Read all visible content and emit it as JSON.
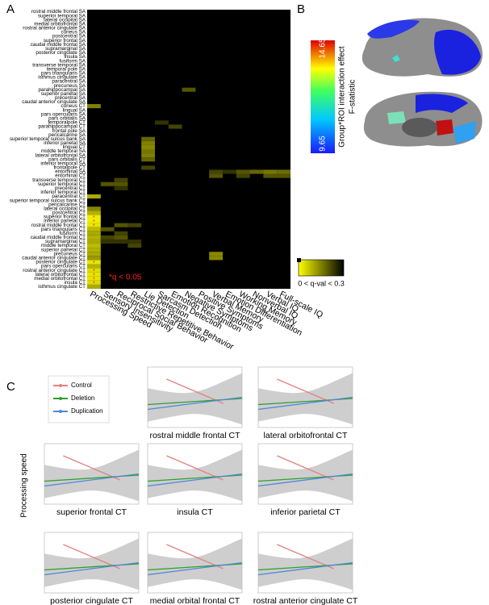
{
  "panel_a": {
    "label": "A",
    "rows": [
      "rostral middle frontal SA",
      "superior temporal SA",
      "lateral occipital SA",
      "medial orbitofrontal SA",
      "rostral anterior cingulate SA",
      "cuneus SA",
      "postcentral SA",
      "superior frontal SA",
      "caudal middle frontal SA",
      "supramarginal SA",
      "posterior cingulate SA",
      "insula SA",
      "fusiform SA",
      "transverse temporal SA",
      "temporal pole SA",
      "pars triangularis SA",
      "isthmus cingulate SA",
      "paracentral SA",
      "precuneus SA",
      "parahippocampal SA",
      "superior parietal SA",
      "precentral SA",
      "caudal anterior cingulate SA",
      "cuneus CT",
      "lingual SA",
      "pars opercularis SA",
      "pars orbitalis SA",
      "temporalpole CT",
      "parahippocampal CT",
      "frontal pole SA",
      "pericalcarine SA",
      "superior temporal sulcus bank SA",
      "inferior parietal SA",
      "lingual CT",
      "middle temporal SA",
      "lateral orbitofrontal SA",
      "pars orbitalis CT",
      "inferior temporal SA",
      "frontalpole CT",
      "entorhinal SA",
      "entorhinal CT",
      "transverse temporal CT",
      "superior temporal CT",
      "precentral CT",
      "inferior temporal CT",
      "paracentral CT",
      "superior temporal sulcus bank CT",
      "pericalcarine CT",
      "lateral occipital CT",
      "postcentral CT",
      "superior frontal CT",
      "inferior parietal CT",
      "rostral middle frontal CT",
      "pars triangularis CT",
      "fusiform CT",
      "caudal middle frontal CT",
      "supramarginal CT",
      "middle temporal CT",
      "superior parietal CT",
      "precuneus CT",
      "caudal anterior cingulate CT",
      "posterior cingulate CT",
      "pars opercularis CT",
      "rostral anterior cingulate CT",
      "lateral orbitofrontal CT",
      "medial orbitofrontal CT",
      "insula CT",
      "isthmus cingulate CT"
    ],
    "columns": [
      "Processing Speed",
      "Sensory Insensitivity",
      "Reciprocal Social Behavior",
      "Restrictive Repetitive Behavior",
      "Lie Detection",
      "Sarcasm Detection",
      "Emotion Recognition",
      "Negative Symptoms",
      "Positive Symptoms",
      "Verbal Memory",
      "Emotion Differentiation",
      "Working Memory",
      "Nonverbal IQ",
      "Verbal IQ",
      "Full-scale IQ"
    ],
    "q_range": [
      0,
      0.3
    ],
    "colorbar_label": "0 < q-val < 0.3",
    "significance_note": "*q < 0.05",
    "cells": [
      {
        "row": 23,
        "col": 0,
        "q": 0.15,
        "star": false
      },
      {
        "row": 45,
        "col": 0,
        "q": 0.1,
        "star": false
      },
      {
        "row": 48,
        "col": 0,
        "q": 0.14,
        "star": false
      },
      {
        "row": 49,
        "col": 0,
        "q": 0.09,
        "star": false
      },
      {
        "row": 50,
        "col": 0,
        "q": 0.02,
        "star": true
      },
      {
        "row": 51,
        "col": 0,
        "q": 0.02,
        "star": true
      },
      {
        "row": 52,
        "col": 0,
        "q": 0.03,
        "star": true
      },
      {
        "row": 53,
        "col": 0,
        "q": 0.08,
        "star": false
      },
      {
        "row": 54,
        "col": 0,
        "q": 0.1,
        "star": false
      },
      {
        "row": 55,
        "col": 0,
        "q": 0.09,
        "star": false
      },
      {
        "row": 56,
        "col": 0,
        "q": 0.1,
        "star": false
      },
      {
        "row": 57,
        "col": 0,
        "q": 0.08,
        "star": false
      },
      {
        "row": 58,
        "col": 0,
        "q": 0.09,
        "star": false
      },
      {
        "row": 59,
        "col": 0,
        "q": 0.1,
        "star": false
      },
      {
        "row": 60,
        "col": 0,
        "q": 0.12,
        "star": false
      },
      {
        "row": 61,
        "col": 0,
        "q": 0.03,
        "star": true
      },
      {
        "row": 62,
        "col": 0,
        "q": 0.09,
        "star": false
      },
      {
        "row": 63,
        "col": 0,
        "q": 0.04,
        "star": true
      },
      {
        "row": 64,
        "col": 0,
        "q": 0.03,
        "star": true
      },
      {
        "row": 65,
        "col": 0,
        "q": 0.03,
        "star": true
      },
      {
        "row": 66,
        "col": 0,
        "q": 0.04,
        "star": true
      },
      {
        "row": 67,
        "col": 0,
        "q": 0.1,
        "star": false
      },
      {
        "row": 42,
        "col": 1,
        "q": 0.2,
        "star": false
      },
      {
        "row": 53,
        "col": 1,
        "q": 0.2,
        "star": false
      },
      {
        "row": 55,
        "col": 1,
        "q": 0.22,
        "star": false
      },
      {
        "row": 56,
        "col": 1,
        "q": 0.24,
        "star": false
      },
      {
        "row": 41,
        "col": 2,
        "q": 0.22,
        "star": false
      },
      {
        "row": 42,
        "col": 2,
        "q": 0.2,
        "star": false
      },
      {
        "row": 43,
        "col": 2,
        "q": 0.24,
        "star": false
      },
      {
        "row": 52,
        "col": 2,
        "q": 0.2,
        "star": false
      },
      {
        "row": 54,
        "col": 2,
        "q": 0.22,
        "star": false
      },
      {
        "row": 55,
        "col": 2,
        "q": 0.2,
        "star": false
      },
      {
        "row": 56,
        "col": 2,
        "q": 0.24,
        "star": false
      },
      {
        "row": 52,
        "col": 3,
        "q": 0.22,
        "star": false
      },
      {
        "row": 56,
        "col": 3,
        "q": 0.24,
        "star": false
      },
      {
        "row": 57,
        "col": 3,
        "q": 0.22,
        "star": false
      },
      {
        "row": 31,
        "col": 4,
        "q": 0.18,
        "star": false
      },
      {
        "row": 32,
        "col": 4,
        "q": 0.15,
        "star": false
      },
      {
        "row": 33,
        "col": 4,
        "q": 0.14,
        "star": false
      },
      {
        "row": 34,
        "col": 4,
        "q": 0.16,
        "star": false
      },
      {
        "row": 35,
        "col": 4,
        "q": 0.15,
        "star": false
      },
      {
        "row": 36,
        "col": 4,
        "q": 0.18,
        "star": false
      },
      {
        "row": 38,
        "col": 4,
        "q": 0.22,
        "star": false
      },
      {
        "row": 27,
        "col": 5,
        "q": 0.24,
        "star": false
      },
      {
        "row": 28,
        "col": 6,
        "q": 0.22,
        "star": false
      },
      {
        "row": 19,
        "col": 7,
        "q": 0.2,
        "star": false
      },
      {
        "row": 39,
        "col": 9,
        "q": 0.22,
        "star": false
      },
      {
        "row": 40,
        "col": 9,
        "q": 0.2,
        "star": false
      },
      {
        "row": 59,
        "col": 9,
        "q": 0.14,
        "star": false
      },
      {
        "row": 60,
        "col": 9,
        "q": 0.14,
        "star": false
      },
      {
        "row": 39,
        "col": 10,
        "q": 0.24,
        "star": false
      },
      {
        "row": 39,
        "col": 11,
        "q": 0.2,
        "star": false
      },
      {
        "row": 40,
        "col": 11,
        "q": 0.22,
        "star": false
      },
      {
        "row": 39,
        "col": 12,
        "q": 0.18,
        "star": false
      },
      {
        "row": 39,
        "col": 13,
        "q": 0.16,
        "star": false
      },
      {
        "row": 40,
        "col": 13,
        "q": 0.2,
        "star": false
      },
      {
        "row": 39,
        "col": 14,
        "q": 0.17,
        "star": false
      },
      {
        "row": 40,
        "col": 14,
        "q": 0.2,
        "star": false
      }
    ]
  },
  "panel_b": {
    "label": "B",
    "colorbar_max": 14.65,
    "colorbar_min": 9.65,
    "colorbar_title": "Group*ROI interaction effect",
    "colorbar_subtitle": "F-statistic"
  },
  "panel_c": {
    "label": "C",
    "y_label": "Processing speed",
    "legend": [
      {
        "name": "Control",
        "color": "#e5807f"
      },
      {
        "name": "Deletion",
        "color": "#2ca02c"
      },
      {
        "name": "Duplication",
        "color": "#4f86d9"
      }
    ],
    "plots": [
      "rostral middle frontal CT",
      "lateral orbitofrontal CT",
      "superior frontal CT",
      "insula CT",
      "inferior parietal CT",
      "posterior cingulate CT",
      "medial orbital frontal CT",
      "rostral anterior cingulate CT"
    ]
  }
}
